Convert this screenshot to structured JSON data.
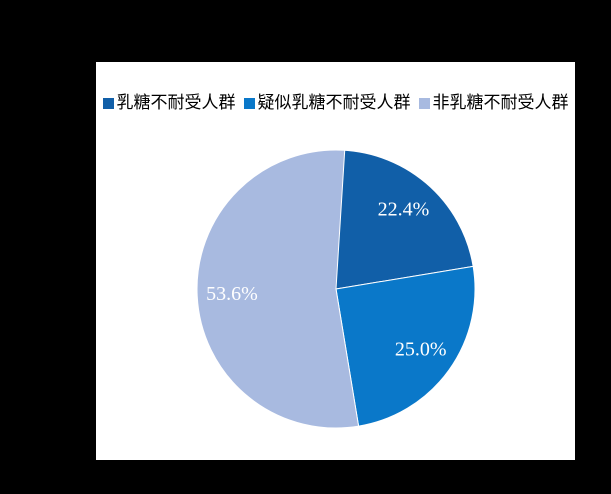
{
  "window": {
    "background_color": "#000000",
    "panel_background_color": "#ffffff"
  },
  "chart_data": {
    "type": "pie",
    "direction": "clockwise",
    "start_angle_deg": 0,
    "legend_position": "top",
    "label_distance_ratio": 0.75,
    "slice_border_color": "#ffffff",
    "data_label_color": "#ffffff",
    "legend_text_color": "#000000",
    "slices": [
      {
        "label": "乳糖不耐受人群",
        "value": 22.4,
        "display": "22.4%",
        "color": "#115FA8"
      },
      {
        "label": "疑似乳糖不耐受人群",
        "value": 25.0,
        "display": "25.0%",
        "color": "#0A78C9"
      },
      {
        "label": "非乳糖不耐受人群",
        "value": 53.6,
        "display": "53.6%",
        "color": "#A8BAE0"
      }
    ]
  }
}
